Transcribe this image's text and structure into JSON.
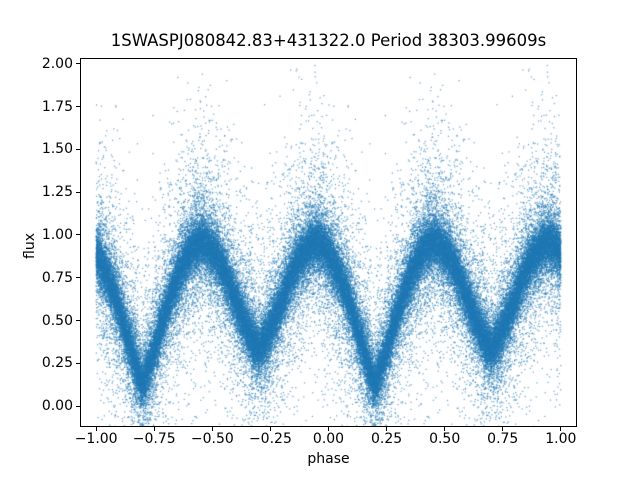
{
  "figure": {
    "background": "#ffffff"
  },
  "chart_data": {
    "type": "scatter",
    "title": "1SWASPJ080842.83+431322.0 Period 38303.99609s",
    "xlabel": "phase",
    "ylabel": "flux",
    "xlim": [
      -1.0652,
      1.0652
    ],
    "ylim": [
      -0.1166,
      2.0286
    ],
    "grid": false,
    "legend": null,
    "axis_color": "#000000",
    "xticks": {
      "values": [
        -1.0,
        -0.75,
        -0.5,
        -0.25,
        0.0,
        0.25,
        0.5,
        0.75,
        1.0
      ],
      "labels": [
        "−1.00",
        "−0.75",
        "−0.50",
        "−0.25",
        "0.00",
        "0.25",
        "0.50",
        "0.75",
        "1.00"
      ]
    },
    "yticks": {
      "values": [
        0.0,
        0.25,
        0.5,
        0.75,
        1.0,
        1.25,
        1.5,
        1.75,
        2.0
      ],
      "labels": [
        "0.00",
        "0.25",
        "0.50",
        "0.75",
        "1.00",
        "1.25",
        "1.50",
        "1.75",
        "2.00"
      ]
    },
    "marker": {
      "color": "#1f77b4",
      "alpha": 0.7,
      "size": 1.2
    },
    "scatter_model": {
      "description": "Phase-folded eclipsing-binary light curve (SuperWASP). Each of n_points observations has phase in [0,1) and is plotted twice, at phase-1 and phase, covering x in [-1,1]. Mean flux curve sampled every 0.025 in phase starting at phase 0; vertical scatter is a 3-component Gaussian mixture around the mean curve.",
      "n_points": 45000,
      "seed": 42,
      "curve_phase_step": 0.025,
      "curve_flux": [
        0.89,
        0.83,
        0.75,
        0.66,
        0.56,
        0.45,
        0.33,
        0.22,
        0.13,
        0.22,
        0.33,
        0.45,
        0.56,
        0.66,
        0.75,
        0.83,
        0.89,
        0.94,
        0.96,
        0.945,
        0.91,
        0.86,
        0.79,
        0.71,
        0.62,
        0.53,
        0.45,
        0.38,
        0.33,
        0.38,
        0.45,
        0.53,
        0.62,
        0.71,
        0.79,
        0.86,
        0.91,
        0.945,
        0.96,
        0.94
      ],
      "primary_minimum": {
        "phase": 0.2,
        "flux": 0.13
      },
      "secondary_minimum": {
        "phase": 0.7,
        "flux": 0.33
      },
      "maxima": {
        "phases": [
          0.45,
          0.95
        ],
        "flux": 0.96
      },
      "noise_components": [
        {
          "fraction": 0.6,
          "sigma": 0.065
        },
        {
          "fraction": 0.27,
          "sigma": 0.15
        },
        {
          "fraction": 0.13,
          "sigma": 0.4
        }
      ]
    }
  }
}
